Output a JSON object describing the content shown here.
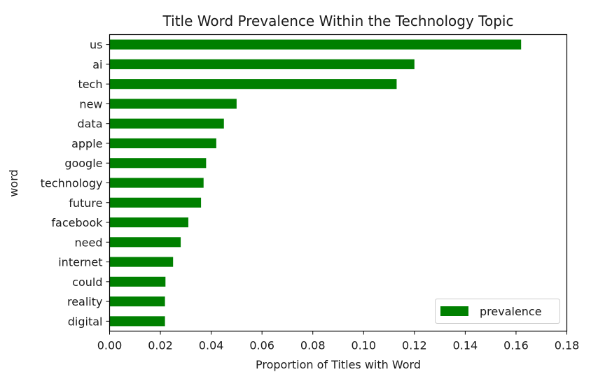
{
  "chart_data": {
    "type": "bar",
    "orientation": "horizontal",
    "title": "Title Word Prevalence Within the Technology Topic",
    "xlabel": "Proportion of Titles with Word",
    "ylabel": "word",
    "xlim": [
      0.0,
      0.18
    ],
    "xticks": [
      "0.00",
      "0.02",
      "0.04",
      "0.06",
      "0.08",
      "0.10",
      "0.12",
      "0.14",
      "0.16",
      "0.18"
    ],
    "xtick_values": [
      0.0,
      0.02,
      0.04,
      0.06,
      0.08,
      0.1,
      0.12,
      0.14,
      0.16,
      0.18
    ],
    "categories": [
      "us",
      "ai",
      "tech",
      "new",
      "data",
      "apple",
      "google",
      "technology",
      "future",
      "facebook",
      "need",
      "internet",
      "could",
      "reality",
      "digital"
    ],
    "series": [
      {
        "name": "prevalence",
        "color": "#008000",
        "values": [
          0.162,
          0.12,
          0.113,
          0.05,
          0.045,
          0.042,
          0.038,
          0.037,
          0.036,
          0.031,
          0.028,
          0.025,
          0.022,
          0.0218,
          0.0218
        ]
      }
    ],
    "grid": false,
    "legend_position": "lower-right"
  }
}
